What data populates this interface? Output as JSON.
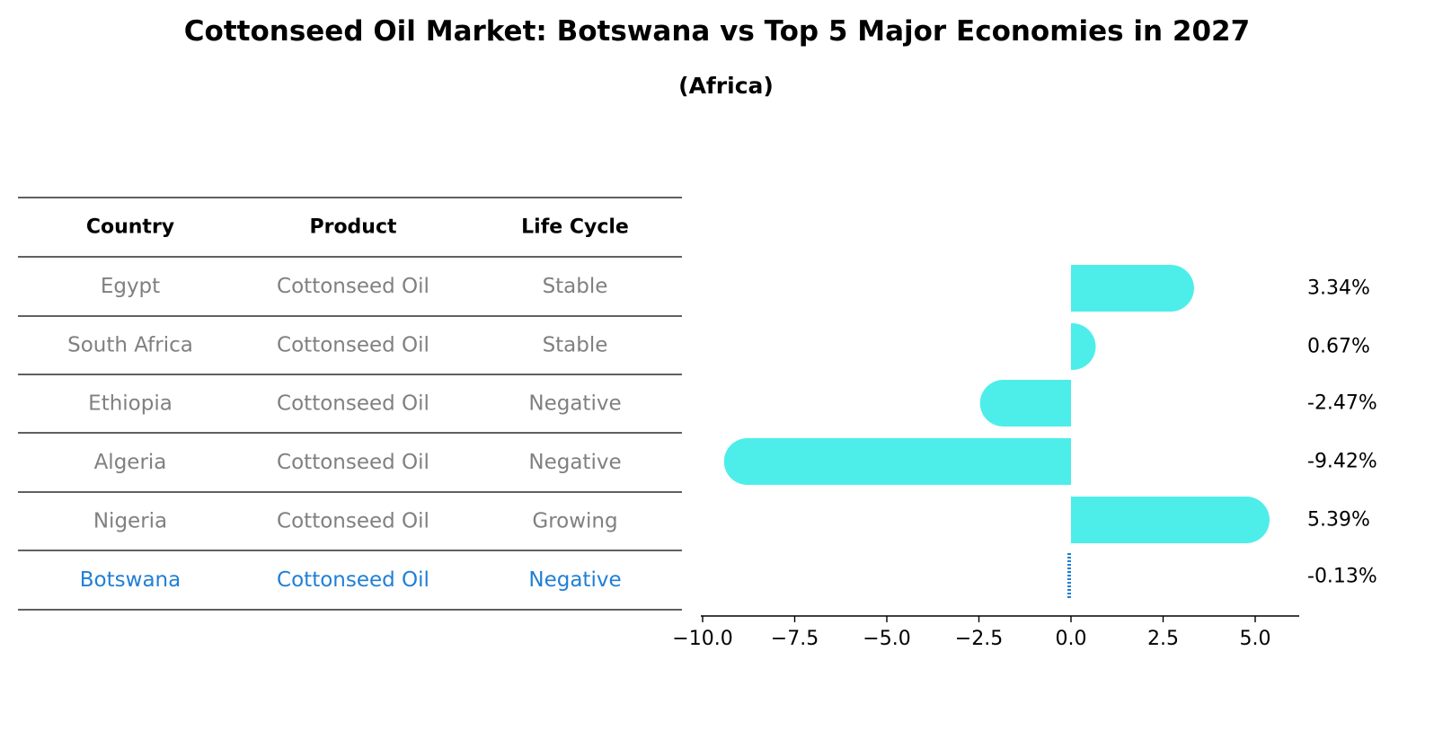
{
  "title": "Cottonseed Oil Market: Botswana vs Top 5 Major Economies in 2027",
  "subtitle": "(Africa)",
  "table": {
    "headers": [
      "Country",
      "Product",
      "Life Cycle"
    ],
    "rows": [
      [
        "Egypt",
        "Cottonseed Oil",
        "Stable"
      ],
      [
        "South Africa",
        "Cottonseed Oil",
        "Stable"
      ],
      [
        "Ethiopia",
        "Cottonseed Oil",
        "Negative"
      ],
      [
        "Algeria",
        "Cottonseed Oil",
        "Negative"
      ],
      [
        "Nigeria",
        "Cottonseed Oil",
        "Growing"
      ],
      [
        "Botswana",
        "Cottonseed Oil",
        "Negative"
      ]
    ],
    "highlight_row": "Botswana"
  },
  "colors": {
    "bar": "#4deeea",
    "highlight": "#1f7fd6",
    "row_text": "#808080",
    "header_text": "#000000",
    "axis": "#000000"
  },
  "chart_data": {
    "type": "bar",
    "orientation": "horizontal",
    "categories": [
      "Egypt",
      "South Africa",
      "Ethiopia",
      "Algeria",
      "Nigeria",
      "Botswana"
    ],
    "values": [
      3.34,
      0.67,
      -2.47,
      -9.42,
      5.39,
      -0.13
    ],
    "value_labels": [
      "3.34%",
      "0.67%",
      "-2.47%",
      "-9.42%",
      "5.39%",
      "-0.13%"
    ],
    "xlim": [
      -10.0,
      6.0
    ],
    "xticks": [
      -10.0,
      -7.5,
      -5.0,
      -2.5,
      0.0,
      2.5,
      5.0
    ],
    "xtick_labels": [
      "−10.0",
      "−7.5",
      "−5.0",
      "−2.5",
      "0.0",
      "2.5",
      "5.0"
    ],
    "grid": false,
    "legend": "none"
  }
}
